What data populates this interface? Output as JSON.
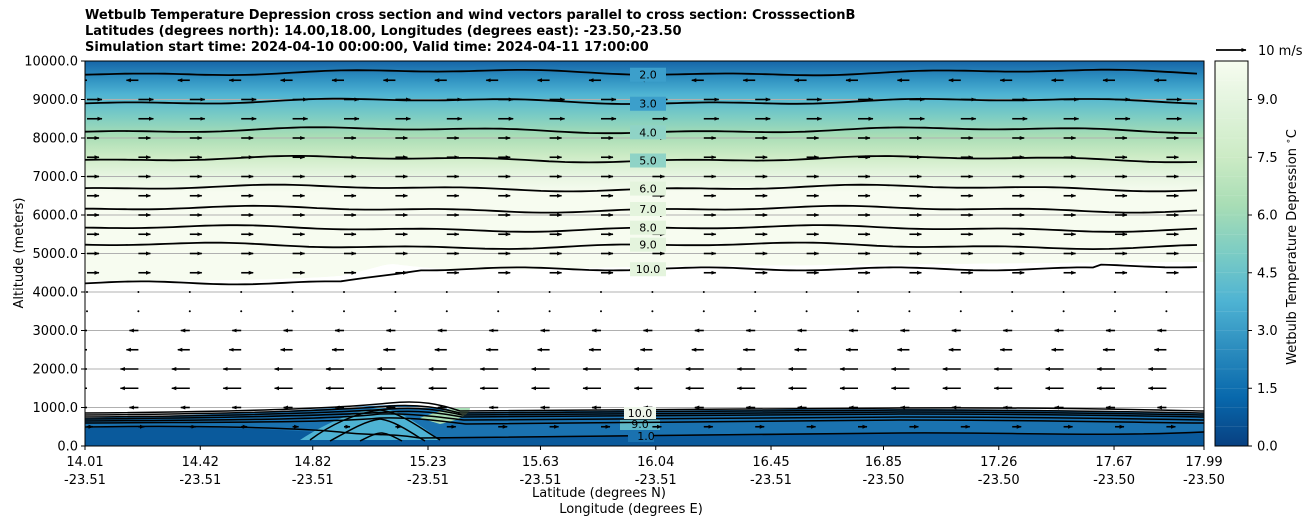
{
  "title": {
    "line1": "Wetbulb Temperature Depression cross section and wind vectors parallel to cross section: CrosssectionB",
    "line2": "Latitudes (degrees north): 14.00,18.00, Longitudes (degrees east): -23.50,-23.50",
    "line3": "Simulation start time: 2024-04-10 00:00:00, Valid time: 2024-04-11 17:00:00"
  },
  "chart_data": {
    "type": "contour",
    "title": "Wetbulb Temperature Depression cross section and wind vectors parallel to cross section: CrosssectionB",
    "ylabel": "Altitude (meters)",
    "xlabel_lat": "Latitude (degrees N)",
    "xlabel_lon": "Longitude (degrees E)",
    "ylim": [
      0,
      10000
    ],
    "xlim": [
      14.01,
      17.99
    ],
    "yticks": [
      "0.0",
      "1000.0",
      "2000.0",
      "3000.0",
      "4000.0",
      "5000.0",
      "6000.0",
      "7000.0",
      "8000.0",
      "9000.0",
      "10000.0"
    ],
    "xticks": [
      {
        "lat": "14.01",
        "lon": "-23.51"
      },
      {
        "lat": "14.42",
        "lon": "-23.51"
      },
      {
        "lat": "14.82",
        "lon": "-23.51"
      },
      {
        "lat": "15.23",
        "lon": "-23.51"
      },
      {
        "lat": "15.63",
        "lon": "-23.51"
      },
      {
        "lat": "16.04",
        "lon": "-23.51"
      },
      {
        "lat": "16.45",
        "lon": "-23.51"
      },
      {
        "lat": "16.85",
        "lon": "-23.50"
      },
      {
        "lat": "17.26",
        "lon": "-23.50"
      },
      {
        "lat": "17.67",
        "lon": "-23.50"
      },
      {
        "lat": "17.99",
        "lon": "-23.50"
      }
    ],
    "colorbar": {
      "label": "Wetbulb Temperature Depression $^\\circ$C",
      "range": [
        0,
        10
      ],
      "ticks": [
        "0.0",
        "1.5",
        "3.0",
        "4.5",
        "6.0",
        "7.5",
        "9.0"
      ]
    },
    "contour_lines": [
      {
        "value": 2.0,
        "label": "2.0",
        "altitude_m": 9700
      },
      {
        "value": 3.0,
        "label": "3.0",
        "altitude_m": 8950
      },
      {
        "value": 4.0,
        "label": "4.0",
        "altitude_m": 8200
      },
      {
        "value": 5.0,
        "label": "5.0",
        "altitude_m": 7450
      },
      {
        "value": 6.0,
        "label": "6.0",
        "altitude_m": 6700
      },
      {
        "value": 7.0,
        "label": "7.0",
        "altitude_m": 6150
      },
      {
        "value": 8.0,
        "label": "8.0",
        "altitude_m": 5650
      },
      {
        "value": 9.0,
        "label": "9.0",
        "altitude_m": 5200
      },
      {
        "value": 10.0,
        "label": "10.0",
        "altitude_m": 4600
      }
    ],
    "surface_labels": [
      "10.0",
      "9.0",
      "1.0"
    ],
    "wind_key": {
      "label": "10 m/s",
      "speed_ms": 10
    },
    "wind_layers": [
      {
        "altitude_m": 9500,
        "u_ms": -4
      },
      {
        "altitude_m": 9000,
        "u_ms": 5
      },
      {
        "altitude_m": 8500,
        "u_ms": 5
      },
      {
        "altitude_m": 8000,
        "u_ms": 4
      },
      {
        "altitude_m": 7500,
        "u_ms": 4
      },
      {
        "altitude_m": 7000,
        "u_ms": 4
      },
      {
        "altitude_m": 6500,
        "u_ms": 4
      },
      {
        "altitude_m": 6000,
        "u_ms": 4
      },
      {
        "altitude_m": 5500,
        "u_ms": 4
      },
      {
        "altitude_m": 5000,
        "u_ms": 4
      },
      {
        "altitude_m": 4500,
        "u_ms": 4
      },
      {
        "altitude_m": 4000,
        "u_ms": 0.5
      },
      {
        "altitude_m": 3500,
        "u_ms": 0.5
      },
      {
        "altitude_m": 3000,
        "u_ms": -3
      },
      {
        "altitude_m": 2500,
        "u_ms": -4
      },
      {
        "altitude_m": 2000,
        "u_ms": -6
      },
      {
        "altitude_m": 1500,
        "u_ms": -6
      },
      {
        "altitude_m": 1000,
        "u_ms": -3
      },
      {
        "altitude_m": 500,
        "u_ms": 2
      }
    ],
    "colors": {
      "c0": "#084081",
      "c1": "#0868ac",
      "c2": "#2b8cbe",
      "c3": "#4eb3d3",
      "c4": "#7bccc4",
      "c5": "#a8ddb5",
      "c6": "#ccebc5",
      "c7": "#e0f3db",
      "c8": "#f7fcf0"
    }
  }
}
